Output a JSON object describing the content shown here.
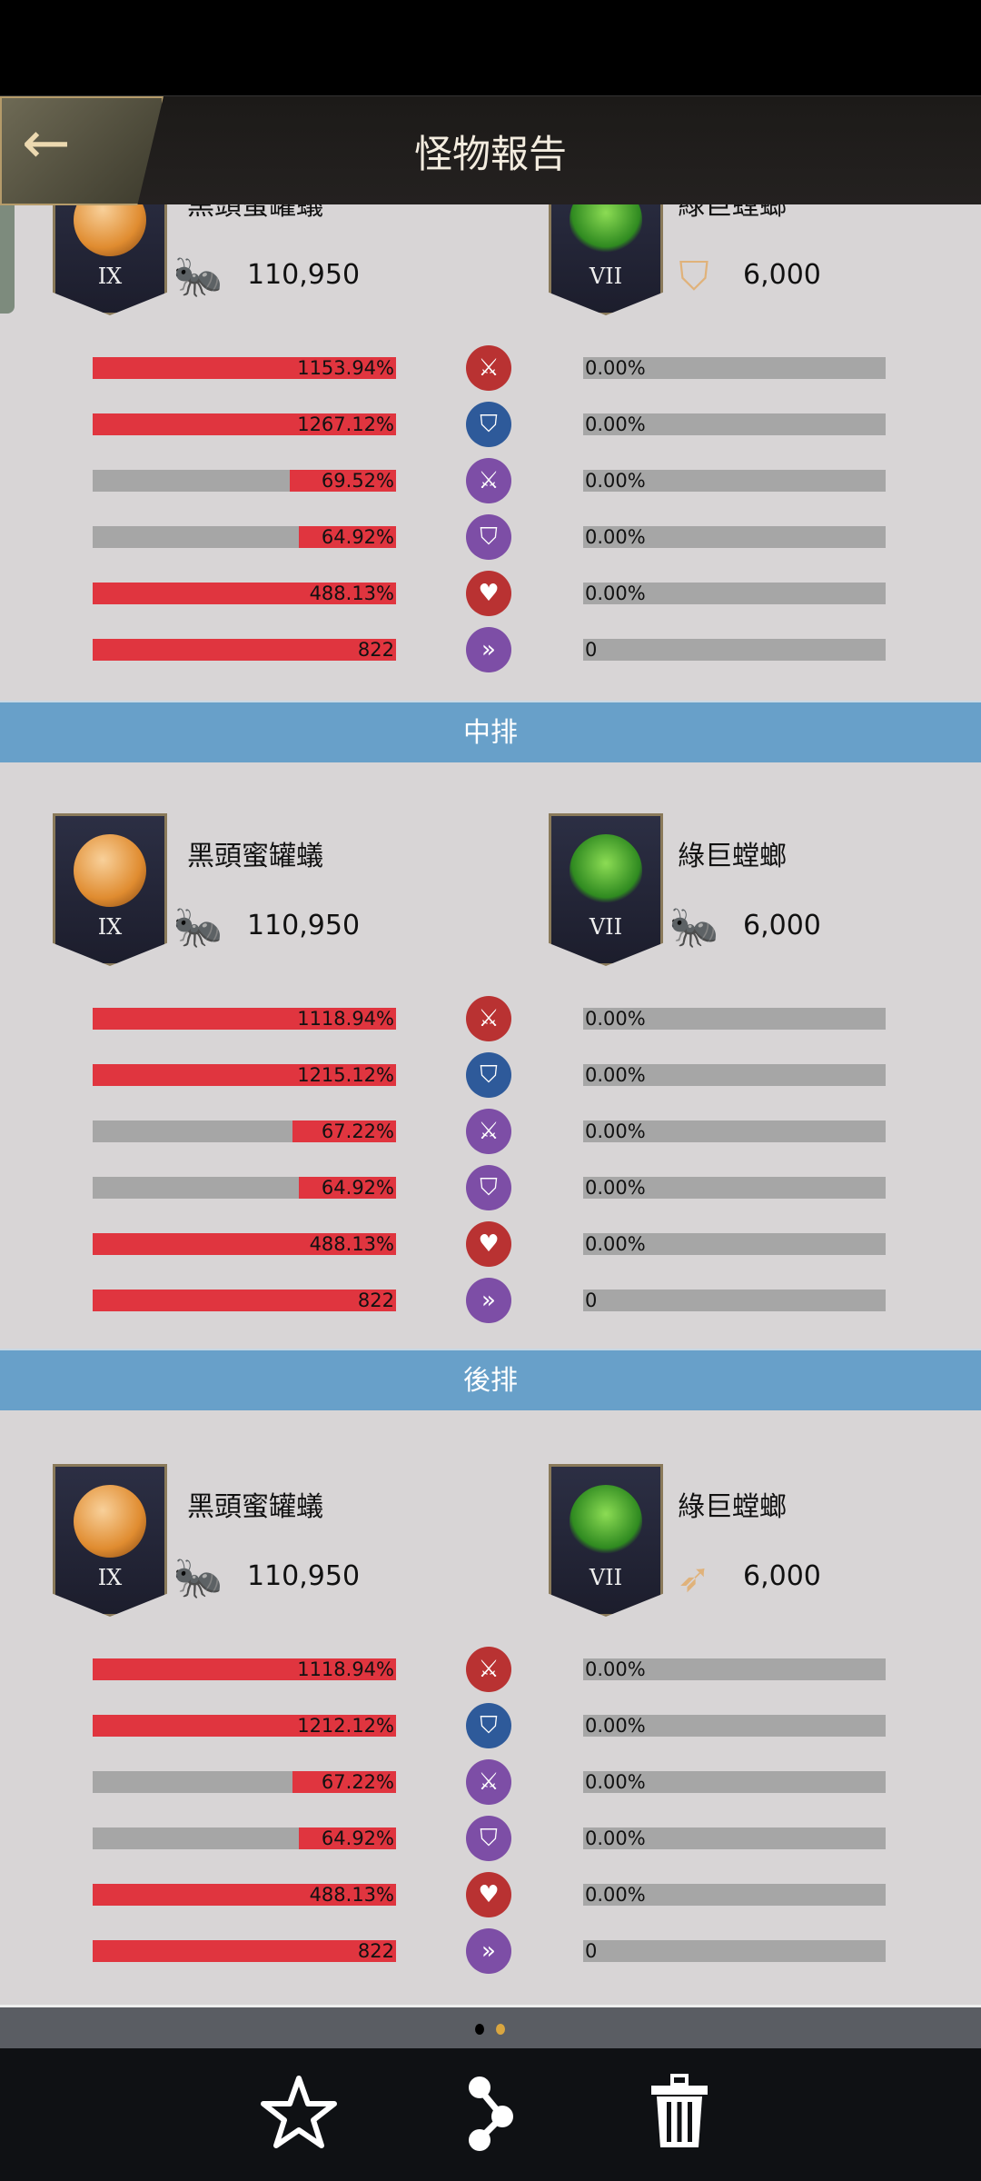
{
  "header": {
    "title": "怪物報告",
    "back_icon": "arrow-left-icon"
  },
  "colors": {
    "bar_fill": "#e0353f",
    "bar_bg": "#a6a6a6",
    "band": "#68a0c9"
  },
  "bands": [
    "中排",
    "後排"
  ],
  "sections": [
    {
      "left": {
        "name": "黑頭蜜罐蟻",
        "rank": "IX",
        "troop_icon": "ant-icon",
        "value": "110,950"
      },
      "right": {
        "name": "綠巨螳螂",
        "rank": "VII",
        "troop_icon": "shield-icon",
        "value": "6,000"
      },
      "stats": [
        {
          "icon": "attack-icon",
          "color": "#b93232",
          "left": "1153.94%",
          "left_fill": 1,
          "right": "0.00%",
          "right_fill": 0
        },
        {
          "icon": "defense-icon",
          "color": "#2e5a9a",
          "left": "1267.12%",
          "left_fill": 1,
          "right": "0.00%",
          "right_fill": 0
        },
        {
          "icon": "attack-icon",
          "color": "#7d4ea6",
          "left": "69.52%",
          "left_fill": 0.35,
          "right": "0.00%",
          "right_fill": 0
        },
        {
          "icon": "defense-icon",
          "color": "#7d4ea6",
          "left": "64.92%",
          "left_fill": 0.32,
          "right": "0.00%",
          "right_fill": 0
        },
        {
          "icon": "health-icon",
          "color": "#b93232",
          "left": "488.13%",
          "left_fill": 1,
          "right": "0.00%",
          "right_fill": 0
        },
        {
          "icon": "speed-icon",
          "color": "#7d4ea6",
          "left": "822",
          "left_fill": 1,
          "right": "0",
          "right_fill": 0
        }
      ]
    },
    {
      "left": {
        "name": "黑頭蜜罐蟻",
        "rank": "IX",
        "troop_icon": "ant-icon",
        "value": "110,950"
      },
      "right": {
        "name": "綠巨螳螂",
        "rank": "VII",
        "troop_icon": "ant-icon",
        "value": "6,000"
      },
      "stats": [
        {
          "icon": "attack-icon",
          "color": "#b93232",
          "left": "1118.94%",
          "left_fill": 1,
          "right": "0.00%",
          "right_fill": 0
        },
        {
          "icon": "defense-icon",
          "color": "#2e5a9a",
          "left": "1215.12%",
          "left_fill": 1,
          "right": "0.00%",
          "right_fill": 0
        },
        {
          "icon": "attack-icon",
          "color": "#7d4ea6",
          "left": "67.22%",
          "left_fill": 0.34,
          "right": "0.00%",
          "right_fill": 0
        },
        {
          "icon": "defense-icon",
          "color": "#7d4ea6",
          "left": "64.92%",
          "left_fill": 0.32,
          "right": "0.00%",
          "right_fill": 0
        },
        {
          "icon": "health-icon",
          "color": "#b93232",
          "left": "488.13%",
          "left_fill": 1,
          "right": "0.00%",
          "right_fill": 0
        },
        {
          "icon": "speed-icon",
          "color": "#7d4ea6",
          "left": "822",
          "left_fill": 1,
          "right": "0",
          "right_fill": 0
        }
      ]
    },
    {
      "left": {
        "name": "黑頭蜜罐蟻",
        "rank": "IX",
        "troop_icon": "ant-icon",
        "value": "110,950"
      },
      "right": {
        "name": "綠巨螳螂",
        "rank": "VII",
        "troop_icon": "bow-icon",
        "value": "6,000"
      },
      "stats": [
        {
          "icon": "attack-icon",
          "color": "#b93232",
          "left": "1118.94%",
          "left_fill": 1,
          "right": "0.00%",
          "right_fill": 0
        },
        {
          "icon": "defense-icon",
          "color": "#2e5a9a",
          "left": "1212.12%",
          "left_fill": 1,
          "right": "0.00%",
          "right_fill": 0
        },
        {
          "icon": "attack-icon",
          "color": "#7d4ea6",
          "left": "67.22%",
          "left_fill": 0.34,
          "right": "0.00%",
          "right_fill": 0
        },
        {
          "icon": "defense-icon",
          "color": "#7d4ea6",
          "left": "64.92%",
          "left_fill": 0.32,
          "right": "0.00%",
          "right_fill": 0
        },
        {
          "icon": "health-icon",
          "color": "#b93232",
          "left": "488.13%",
          "left_fill": 1,
          "right": "0.00%",
          "right_fill": 0
        },
        {
          "icon": "speed-icon",
          "color": "#7d4ea6",
          "left": "822",
          "left_fill": 1,
          "right": "0",
          "right_fill": 0
        }
      ]
    }
  ],
  "pager": {
    "pages": 2,
    "current": 2
  },
  "nav": [
    "star-icon",
    "share-icon",
    "trash-icon"
  ]
}
